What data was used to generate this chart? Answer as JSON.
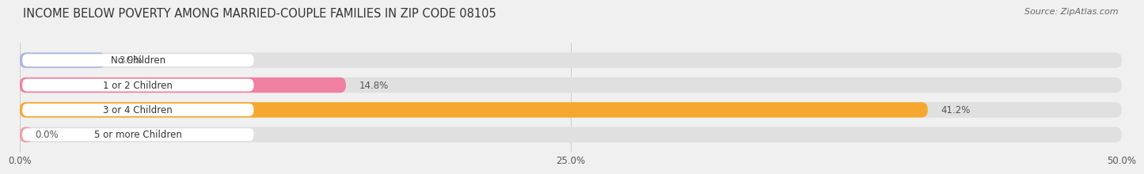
{
  "title": "INCOME BELOW POVERTY AMONG MARRIED-COUPLE FAMILIES IN ZIP CODE 08105",
  "source": "Source: ZipAtlas.com",
  "categories": [
    "No Children",
    "1 or 2 Children",
    "3 or 4 Children",
    "5 or more Children"
  ],
  "values": [
    3.9,
    14.8,
    41.2,
    0.0
  ],
  "bar_colors": [
    "#aab4e0",
    "#f080a0",
    "#f5a830",
    "#f0a0a0"
  ],
  "background_color": "#f0f0f0",
  "bar_bg_color": "#e0e0e0",
  "xlim": [
    0,
    50
  ],
  "xtick_vals": [
    0,
    25,
    50
  ],
  "xtick_labels": [
    "0.0%",
    "25.0%",
    "50.0%"
  ],
  "title_fontsize": 10.5,
  "source_fontsize": 8,
  "bar_height": 0.62,
  "pill_color": "#ffffff",
  "value_color": "#555555",
  "label_color": "#333333"
}
